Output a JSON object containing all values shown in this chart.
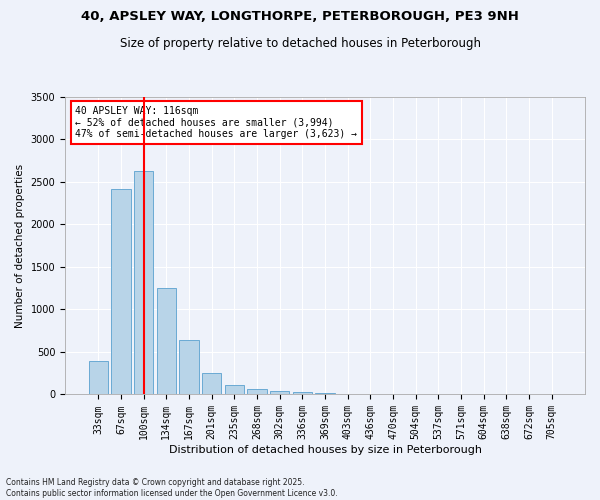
{
  "title1": "40, APSLEY WAY, LONGTHORPE, PETERBOROUGH, PE3 9NH",
  "title2": "Size of property relative to detached houses in Peterborough",
  "xlabel": "Distribution of detached houses by size in Peterborough",
  "ylabel": "Number of detached properties",
  "categories": [
    "33sqm",
    "67sqm",
    "100sqm",
    "134sqm",
    "167sqm",
    "201sqm",
    "235sqm",
    "268sqm",
    "302sqm",
    "336sqm",
    "369sqm",
    "403sqm",
    "436sqm",
    "470sqm",
    "504sqm",
    "537sqm",
    "571sqm",
    "604sqm",
    "638sqm",
    "672sqm",
    "705sqm"
  ],
  "values": [
    390,
    2420,
    2630,
    1250,
    640,
    255,
    110,
    65,
    45,
    25,
    15,
    5,
    0,
    0,
    0,
    0,
    0,
    0,
    0,
    0,
    0
  ],
  "bar_color": "#b8d4e8",
  "bar_edge_color": "#6aaad4",
  "vline_x_index": 2,
  "vline_color": "red",
  "annotation_title": "40 APSLEY WAY: 116sqm",
  "annotation_line1": "← 52% of detached houses are smaller (3,994)",
  "annotation_line2": "47% of semi-detached houses are larger (3,623) →",
  "ylim": [
    0,
    3500
  ],
  "yticks": [
    0,
    500,
    1000,
    1500,
    2000,
    2500,
    3000,
    3500
  ],
  "footer1": "Contains HM Land Registry data © Crown copyright and database right 2025.",
  "footer2": "Contains public sector information licensed under the Open Government Licence v3.0.",
  "bg_color": "#eef2fa",
  "plot_bg_color": "#eef2fa",
  "title1_fontsize": 9.5,
  "title2_fontsize": 8.5,
  "xlabel_fontsize": 8,
  "ylabel_fontsize": 7.5,
  "tick_fontsize": 7,
  "footer_fontsize": 5.5
}
